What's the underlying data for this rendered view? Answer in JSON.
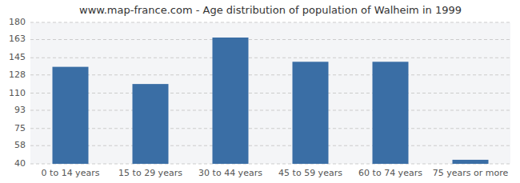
{
  "chart_data": {
    "type": "bar",
    "title": "www.map-france.com - Age distribution of population of Walheim in 1999",
    "categories": [
      "0 to 14 years",
      "15 to 29 years",
      "30 to 44 years",
      "45 to 59 years",
      "60 to 74 years",
      "75 years or more"
    ],
    "values": [
      136,
      119,
      165,
      141,
      141,
      44
    ],
    "color": "#3a6ea5",
    "ylim": [
      40,
      180
    ],
    "yticks": [
      40,
      58,
      75,
      93,
      110,
      128,
      145,
      163,
      180
    ],
    "grid": true
  }
}
